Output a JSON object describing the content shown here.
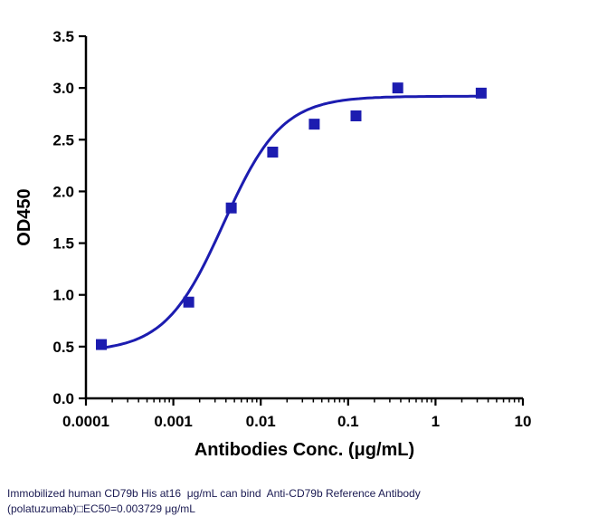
{
  "chart_data": {
    "type": "scatter",
    "title": "",
    "xlabel": "Antibodies Conc. (μg/mL)",
    "ylabel": "OD450",
    "x_scale": "log10",
    "xlim": [
      0.0001,
      10
    ],
    "ylim": [
      0.0,
      3.5
    ],
    "y_ticks": [
      0.0,
      0.5,
      1.0,
      1.5,
      2.0,
      2.5,
      3.0,
      3.5
    ],
    "x_tick_labels": [
      "0.0001",
      "0.001",
      "0.01",
      "0.1",
      "1",
      "10"
    ],
    "grid": "off",
    "legend": "none",
    "points": {
      "x": [
        0.00015,
        0.0015,
        0.0046,
        0.0137,
        0.041,
        0.123,
        0.37,
        3.33
      ],
      "y": [
        0.52,
        0.93,
        1.84,
        2.38,
        2.65,
        2.73,
        3.0,
        2.95
      ]
    },
    "fit": {
      "model": "4PL",
      "bottom": 0.45,
      "top": 2.92,
      "ec50": 0.003729,
      "hill": 1.3,
      "x_start": 0.00015,
      "x_end": 3.33
    },
    "marker": {
      "shape": "square",
      "color": "#1c1cb0",
      "size": 12
    },
    "line_color": "#1c1cb0"
  },
  "colors": {
    "accent": "#1c1cb0",
    "axis": "#000000",
    "caption": "#1a1a52"
  },
  "caption": {
    "line1": "Immobilized human CD79b His at16  μg/mL can bind  Anti-CD79b Reference Antibody",
    "line2": "(polatuzumab)□EC50=0.003729 μg/mL"
  }
}
